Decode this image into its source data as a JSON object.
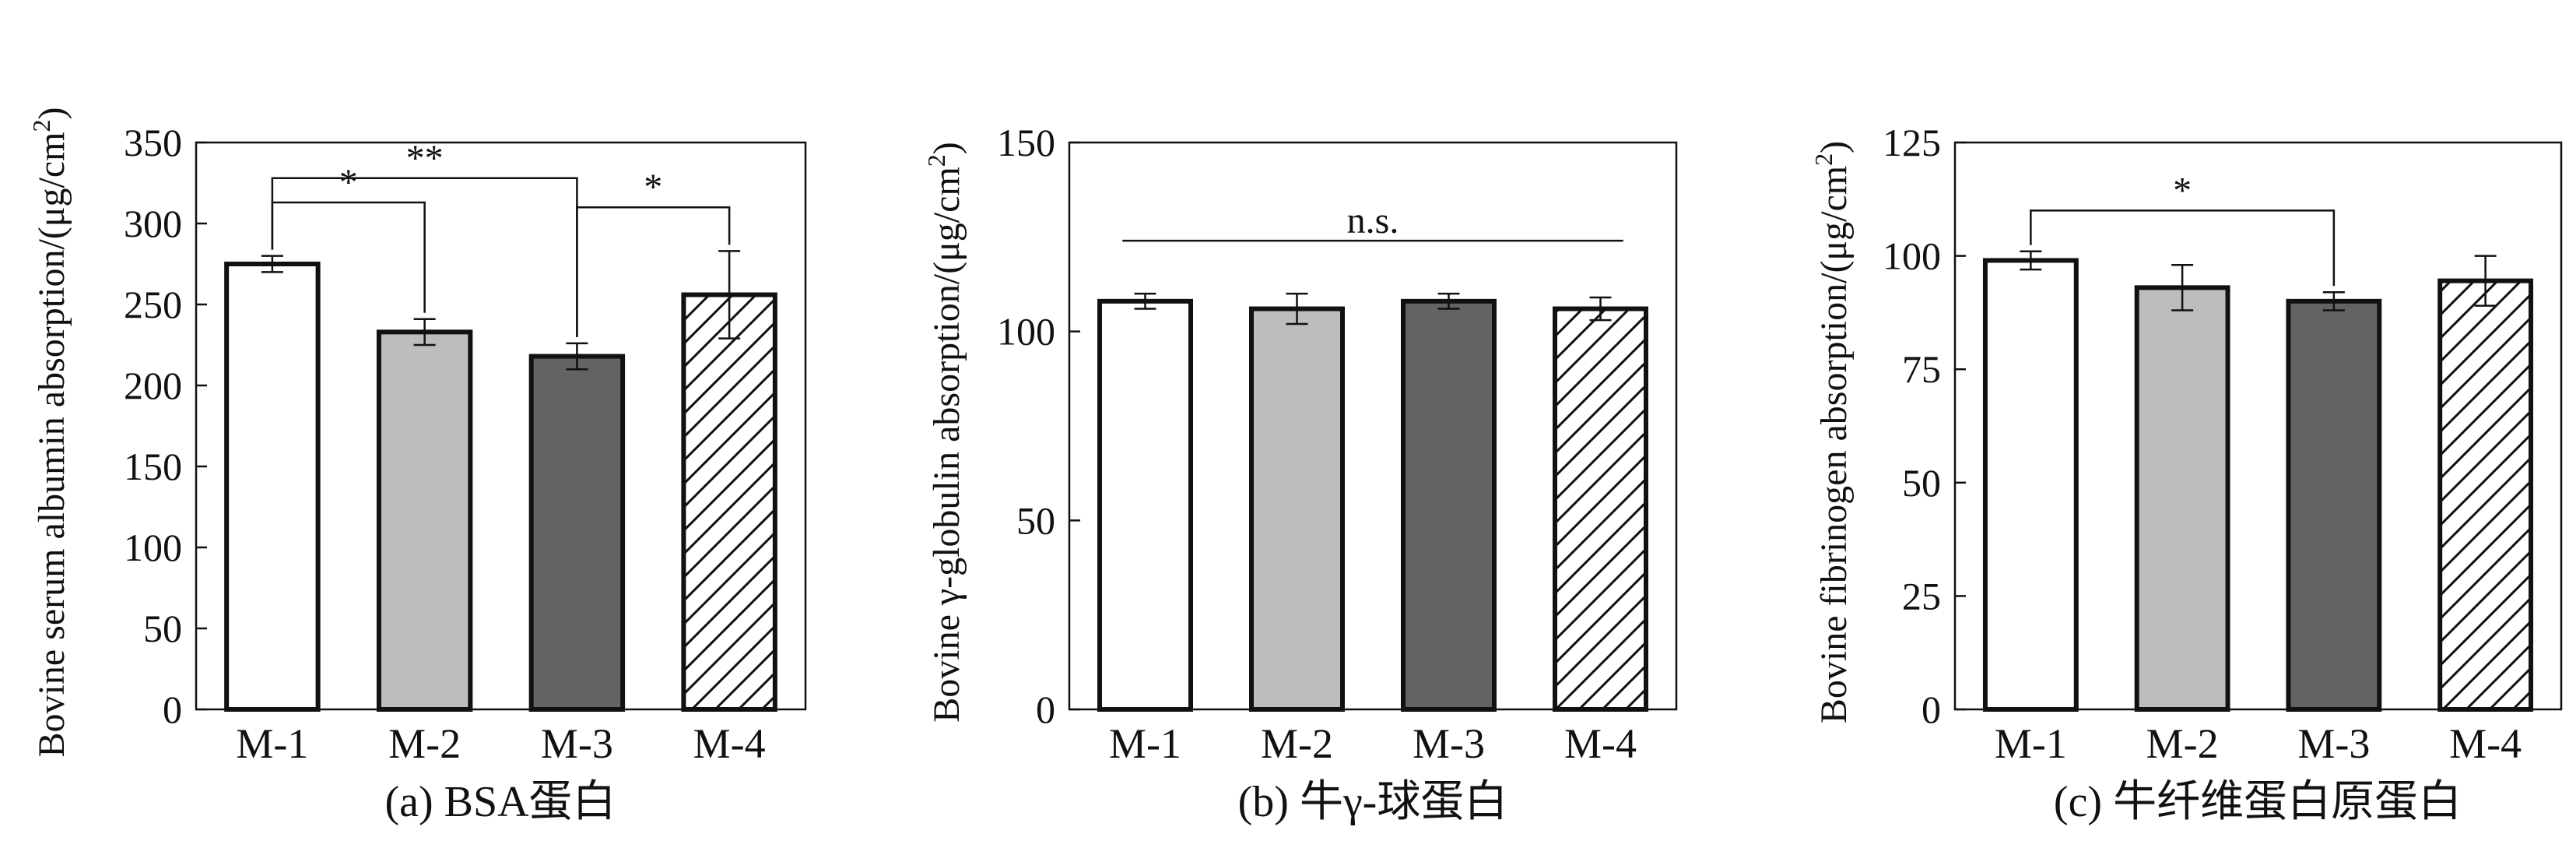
{
  "chart_data": [
    {
      "type": "bar",
      "caption": "(a) BSA蛋白",
      "ylabel_main": "Bovine serum albumin absorption/(μg/cm",
      "ylabel_sup": "2",
      "ylabel_end": ")",
      "categories": [
        "M-1",
        "M-2",
        "M-3",
        "M-4"
      ],
      "values": [
        275,
        233,
        218,
        256
      ],
      "errors": [
        5,
        8,
        8,
        27
      ],
      "ylim": [
        0,
        350
      ],
      "yticks": [
        "0",
        "50",
        "100",
        "150",
        "200",
        "250",
        "300",
        "350"
      ],
      "styles": [
        "white",
        "lightgray",
        "darkgray",
        "hatch"
      ],
      "significance": [
        {
          "from": 0,
          "to": 1,
          "label": "*",
          "y": 313
        },
        {
          "from": 0,
          "to": 2,
          "label": "**",
          "y": 328
        },
        {
          "from": 2,
          "to": 3,
          "label": "*",
          "y": 310
        }
      ]
    },
    {
      "type": "bar",
      "caption": "(b) 牛γ-球蛋白",
      "ylabel_main": "Bovine γ-globulin absorption/(μg/cm",
      "ylabel_sup": "2",
      "ylabel_end": ")",
      "categories": [
        "M-1",
        "M-2",
        "M-3",
        "M-4"
      ],
      "values": [
        108,
        106,
        108,
        106
      ],
      "errors": [
        2,
        4,
        2,
        3
      ],
      "ylim": [
        0,
        150
      ],
      "yticks": [
        "0",
        "50",
        "100",
        "150"
      ],
      "styles": [
        "white",
        "lightgray",
        "darkgray",
        "hatch"
      ],
      "significance": [
        {
          "from": 0,
          "to": 3,
          "label": "n.s.",
          "y": 124,
          "flat": true
        }
      ]
    },
    {
      "type": "bar",
      "caption": "(c) 牛纤维蛋白原蛋白",
      "ylabel_main": "Bovine fibrinogen absorption/(μg/cm",
      "ylabel_sup": "2",
      "ylabel_end": ")",
      "categories": [
        "M-1",
        "M-2",
        "M-3",
        "M-4"
      ],
      "values": [
        99,
        93,
        90,
        94.5
      ],
      "errors": [
        2,
        5,
        2,
        5.5
      ],
      "ylim": [
        0,
        125
      ],
      "yticks": [
        "0",
        "25",
        "50",
        "75",
        "100",
        "125"
      ],
      "styles": [
        "white",
        "lightgray",
        "darkgray",
        "hatch"
      ],
      "significance": [
        {
          "from": 0,
          "to": 2,
          "label": "*",
          "y": 110
        }
      ]
    }
  ],
  "colors": {
    "white": "#ffffff",
    "lightgray": "#bdbdbd",
    "darkgray": "#636363",
    "outline": "#111111"
  }
}
